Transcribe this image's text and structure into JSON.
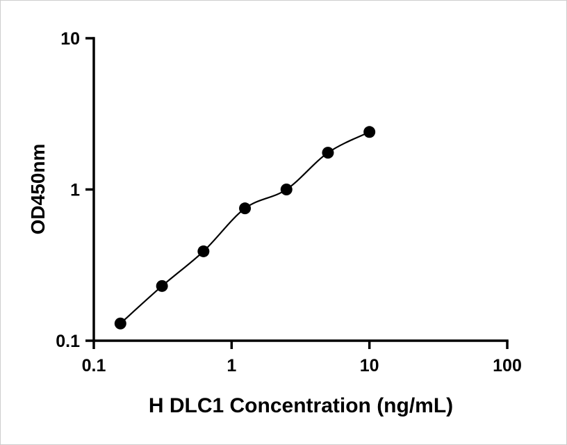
{
  "chart_data": {
    "type": "scatter",
    "title": "",
    "xlabel": "H DLC1 Concentration (ng/mL)",
    "ylabel": "OD450nm",
    "xscale": "log",
    "yscale": "log",
    "xlim": [
      0.1,
      100
    ],
    "ylim": [
      0.1,
      10
    ],
    "x": [
      0.156,
      0.3125,
      0.625,
      1.25,
      2.5,
      5,
      10
    ],
    "y": [
      0.13,
      0.23,
      0.39,
      0.75,
      1.0,
      1.75,
      2.4
    ],
    "x_ticks": [
      0.1,
      1,
      10,
      100
    ],
    "x_tick_labels": [
      "0.1",
      "1",
      "10",
      "100"
    ],
    "y_ticks": [
      0.1,
      1,
      10
    ],
    "y_tick_labels": [
      "0.1",
      "1",
      "10"
    ],
    "grid": false,
    "legend": false,
    "curve": "smooth-fit-through-points",
    "marker": "filled-circle",
    "marker_color": "#000000",
    "line_color": "#000000",
    "axis_color": "#000000",
    "background_color": "#ffffff"
  }
}
